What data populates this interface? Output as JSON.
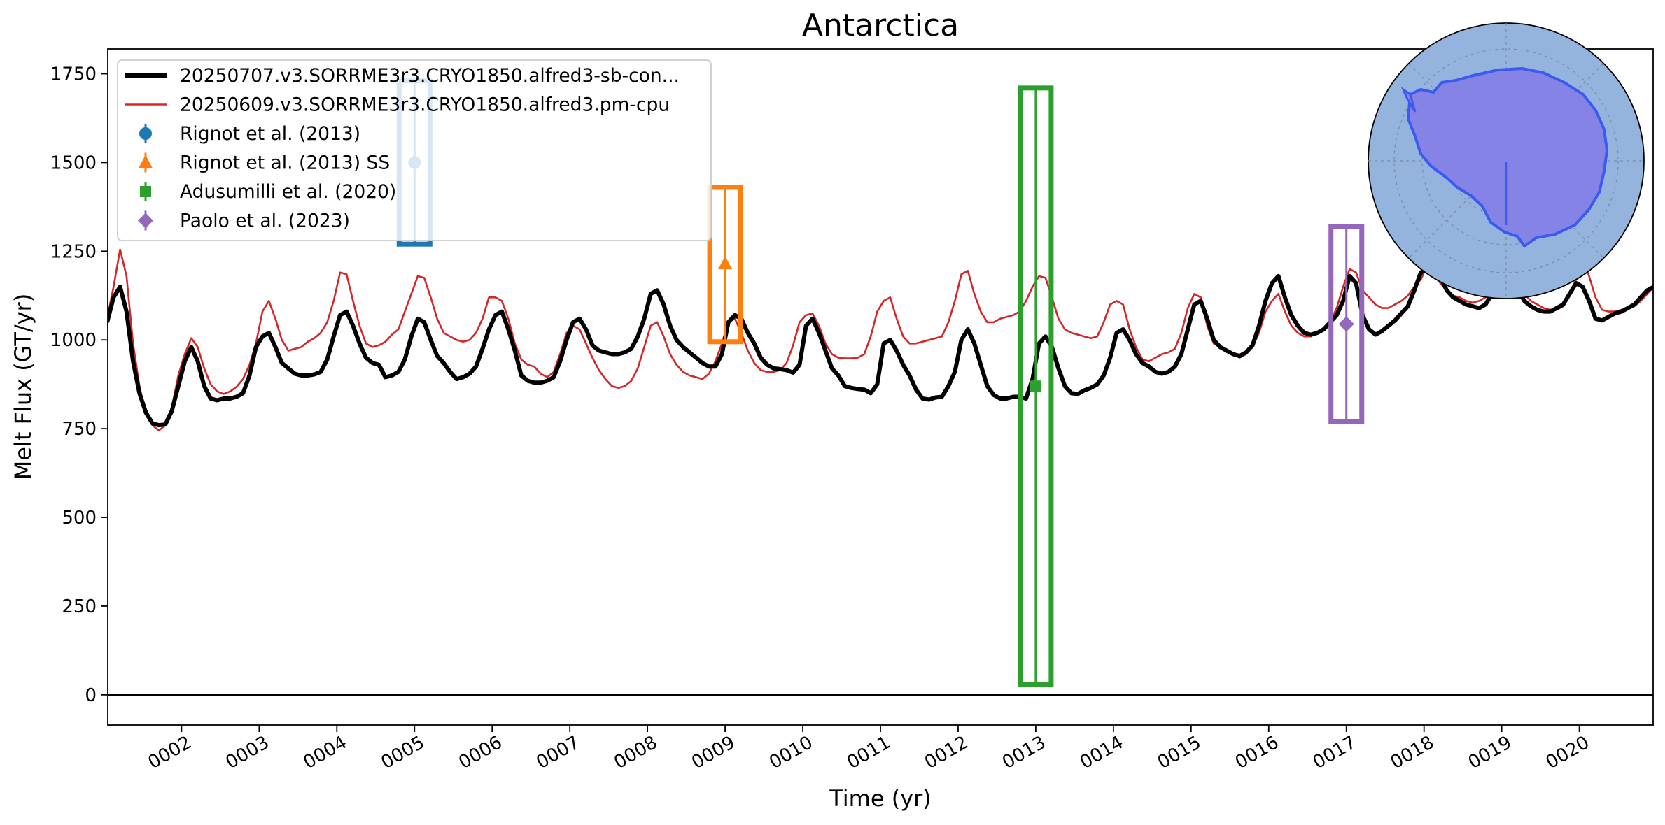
{
  "chart_data": {
    "type": "line",
    "title": "Antarctica",
    "xlabel": "Time (yr)",
    "ylabel": "Melt Flux (GT/yr)",
    "xlim": [
      1.05,
      20.95
    ],
    "ylim": [
      -85,
      1820
    ],
    "x_ticks": [
      2,
      3,
      4,
      5,
      6,
      7,
      8,
      9,
      10,
      11,
      12,
      13,
      14,
      15,
      16,
      17,
      18,
      19,
      20
    ],
    "x_tick_labels": [
      "0002",
      "0003",
      "0004",
      "0005",
      "0006",
      "0007",
      "0008",
      "0009",
      "0010",
      "0011",
      "0012",
      "0013",
      "0014",
      "0015",
      "0016",
      "0017",
      "0018",
      "0019",
      "0020"
    ],
    "y_ticks": [
      0,
      250,
      500,
      750,
      1000,
      1250,
      1500,
      1750
    ],
    "y_tick_labels": [
      "0",
      "250",
      "500",
      "750",
      "1000",
      "1250",
      "1500",
      "1750"
    ],
    "legend_position": "upper left",
    "inset": "Antarctica polar map (top-right)",
    "series": [
      {
        "name": "20250707.v3.SORRME3r3.CRYO1850.alfred3-sb-con...",
        "color": "#000000",
        "x_start": 1.0417,
        "x_step": 0.0833,
        "cycle_values": [
          1100,
          1150,
          1080,
          940,
          850,
          800,
          770,
          760,
          760,
          770,
          820,
          890
        ],
        "cycle_min_adjust": [
          1100,
          1150,
          1080,
          940,
          850,
          800,
          770,
          760,
          760,
          770,
          820,
          890
        ],
        "annual": [
          [
            1050,
            1120,
            1150,
            1080,
            940,
            850,
            795,
            765,
            760,
            762,
            800,
            870
          ],
          [
            940,
            980,
            940,
            870,
            835,
            830,
            835,
            835,
            840,
            850,
            900,
            980
          ],
          [
            1010,
            1020,
            980,
            935,
            920,
            905,
            900,
            900,
            903,
            910,
            945,
            1010
          ],
          [
            1070,
            1080,
            1040,
            990,
            950,
            935,
            930,
            895,
            900,
            910,
            945,
            1010
          ],
          [
            1060,
            1050,
            1000,
            955,
            935,
            910,
            890,
            895,
            905,
            925,
            975,
            1030
          ],
          [
            1070,
            1080,
            1030,
            970,
            900,
            885,
            880,
            880,
            885,
            895,
            940,
            1000
          ],
          [
            1050,
            1060,
            1030,
            985,
            970,
            965,
            960,
            960,
            965,
            975,
            1010,
            1060
          ],
          [
            1130,
            1140,
            1100,
            1040,
            1000,
            980,
            965,
            950,
            935,
            925,
            925,
            960
          ],
          [
            1050,
            1070,
            1060,
            1020,
            990,
            950,
            930,
            920,
            918,
            915,
            908,
            930
          ],
          [
            1040,
            1060,
            1020,
            970,
            920,
            900,
            870,
            865,
            862,
            860,
            850,
            875
          ],
          [
            990,
            1000,
            970,
            930,
            900,
            860,
            835,
            832,
            838,
            840,
            870,
            910
          ],
          [
            1000,
            1030,
            990,
            930,
            870,
            845,
            835,
            835,
            840,
            840,
            835,
            890
          ],
          [
            990,
            1010,
            980,
            920,
            870,
            850,
            848,
            858,
            865,
            875,
            900,
            950
          ],
          [
            1020,
            1030,
            1000,
            960,
            935,
            925,
            910,
            905,
            910,
            925,
            960,
            1030
          ],
          [
            1100,
            1110,
            1060,
            1000,
            980,
            970,
            960,
            955,
            965,
            985,
            1040,
            1110
          ],
          [
            1160,
            1180,
            1120,
            1070,
            1040,
            1020,
            1015,
            1020,
            1030,
            1050,
            1070,
            1110
          ],
          [
            1180,
            1160,
            1070,
            1030,
            1015,
            1025,
            1040,
            1055,
            1075,
            1095,
            1140,
            1190
          ],
          [
            1200,
            1220,
            1180,
            1140,
            1120,
            1110,
            1100,
            1095,
            1090,
            1100,
            1130,
            1180
          ],
          [
            1220,
            1200,
            1140,
            1110,
            1095,
            1085,
            1080,
            1080,
            1090,
            1100,
            1130,
            1160
          ],
          [
            1150,
            1110,
            1060,
            1055,
            1065,
            1075,
            1080,
            1090,
            1100,
            1120,
            1140,
            1150
          ]
        ]
      },
      {
        "name": "20250609.v3.SORRME3r3.CRYO1850.alfred3.pm-cpu",
        "color": "#d62728",
        "annual": [
          [
            1060,
            1150,
            1255,
            1180,
            990,
            870,
            790,
            760,
            745,
            760,
            810,
            900
          ],
          [
            960,
            1005,
            980,
            920,
            875,
            855,
            848,
            855,
            868,
            890,
            930,
            990
          ],
          [
            1080,
            1110,
            1060,
            1000,
            970,
            975,
            980,
            995,
            1005,
            1020,
            1050,
            1110
          ],
          [
            1190,
            1185,
            1110,
            1040,
            990,
            980,
            985,
            995,
            1015,
            1030,
            1080,
            1130
          ],
          [
            1180,
            1175,
            1120,
            1060,
            1020,
            1010,
            1000,
            995,
            1000,
            1020,
            1060,
            1120
          ],
          [
            1120,
            1110,
            1060,
            990,
            945,
            930,
            925,
            905,
            895,
            910,
            960,
            1020
          ],
          [
            1040,
            1030,
            990,
            950,
            915,
            890,
            870,
            865,
            870,
            885,
            920,
            980
          ],
          [
            1040,
            1050,
            1010,
            960,
            930,
            910,
            900,
            895,
            890,
            905,
            940,
            990
          ],
          [
            1050,
            1060,
            1020,
            970,
            935,
            915,
            910,
            910,
            915,
            935,
            985,
            1050
          ],
          [
            1070,
            1075,
            1040,
            990,
            960,
            950,
            948,
            948,
            950,
            960,
            1010,
            1080
          ],
          [
            1110,
            1120,
            1060,
            1010,
            990,
            990,
            995,
            1000,
            1005,
            1010,
            1050,
            1110
          ],
          [
            1185,
            1195,
            1130,
            1080,
            1050,
            1050,
            1060,
            1065,
            1070,
            1080,
            1110,
            1150
          ],
          [
            1180,
            1175,
            1120,
            1060,
            1030,
            1020,
            1015,
            1010,
            1005,
            1010,
            1050,
            1100
          ],
          [
            1110,
            1100,
            1030,
            980,
            945,
            940,
            950,
            960,
            965,
            975,
            1020,
            1090
          ],
          [
            1130,
            1120,
            1040,
            990,
            980,
            970,
            960,
            950,
            960,
            980,
            1020,
            1080
          ],
          [
            1110,
            1130,
            1080,
            1040,
            1020,
            1010,
            1010,
            1020,
            1035,
            1050,
            1090,
            1150
          ],
          [
            1200,
            1190,
            1140,
            1120,
            1100,
            1090,
            1090,
            1100,
            1110,
            1125,
            1150,
            1170
          ],
          [
            1210,
            1200,
            1160,
            1140,
            1125,
            1120,
            1110,
            1105,
            1110,
            1120,
            1150,
            1180
          ],
          [
            1230,
            1220,
            1170,
            1130,
            1110,
            1100,
            1090,
            1085,
            1085,
            1095,
            1130,
            1170
          ],
          [
            1230,
            1180,
            1120,
            1085,
            1080,
            1080,
            1085,
            1090,
            1095,
            1110,
            1130,
            1150
          ]
        ]
      }
    ],
    "observations": [
      {
        "name": "Rignot et al. (2013)",
        "color": "#1f77b4",
        "marker": "circle",
        "x": 5.0,
        "y": 1500,
        "ymin": 1270,
        "ymax": 1730
      },
      {
        "name": "Rignot et al. (2013) SS",
        "color": "#ff7f0e",
        "marker": "triangle",
        "x": 9.0,
        "y": 1215,
        "ymin": 995,
        "ymax": 1430
      },
      {
        "name": "Adusumilli et al. (2020)",
        "color": "#2ca02c",
        "marker": "square",
        "x": 13.0,
        "y": 870,
        "ymin": 30,
        "ymax": 1710
      },
      {
        "name": "Paolo et al. (2023)",
        "color": "#9467bd",
        "marker": "diamond",
        "x": 17.0,
        "y": 1045,
        "ymin": 770,
        "ymax": 1320
      }
    ]
  }
}
